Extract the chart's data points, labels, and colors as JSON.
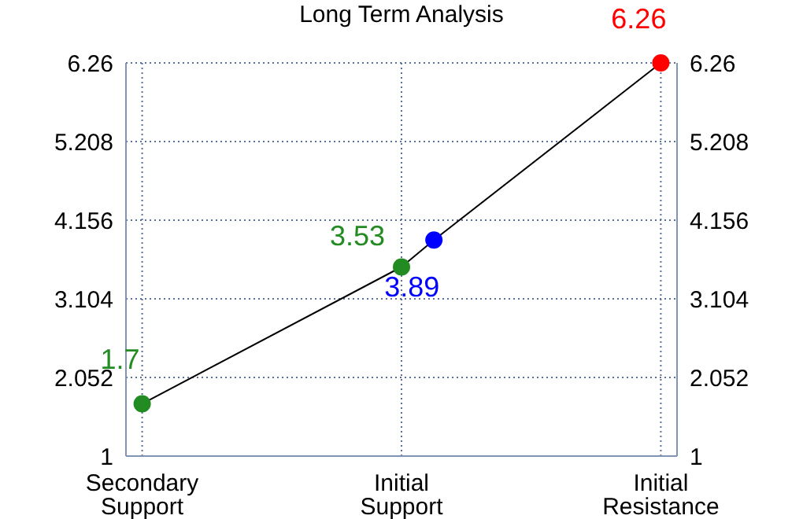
{
  "chart_data": {
    "type": "line",
    "title": "Long Term Analysis",
    "categories": [
      "Secondary Support",
      null,
      null,
      null,
      null,
      null,
      null,
      null,
      "Initial Support",
      null,
      null,
      null,
      null,
      null,
      null,
      null,
      "Initial Resistance"
    ],
    "series": [
      {
        "color": "#000000",
        "colors": [
          "#228b22",
          null,
          null,
          null,
          null,
          null,
          null,
          null,
          "#228b22",
          "#0000ff",
          null,
          null,
          null,
          null,
          null,
          null,
          "#ff0000"
        ],
        "values": [
          1.7,
          null,
          null,
          null,
          null,
          null,
          null,
          null,
          3.53,
          3.89,
          null,
          null,
          null,
          null,
          null,
          null,
          6.26
        ]
      }
    ],
    "ylim": [
      1,
      6.26
    ],
    "yticks": [
      1,
      2.052,
      3.104,
      4.156,
      5.208,
      6.26
    ],
    "y2lim": [
      1,
      6.26
    ],
    "y2ticks": [
      1,
      2.052,
      3.104,
      4.156,
      5.208,
      6.26
    ],
    "grid": true,
    "marker": "circle",
    "data_labels": true
  }
}
